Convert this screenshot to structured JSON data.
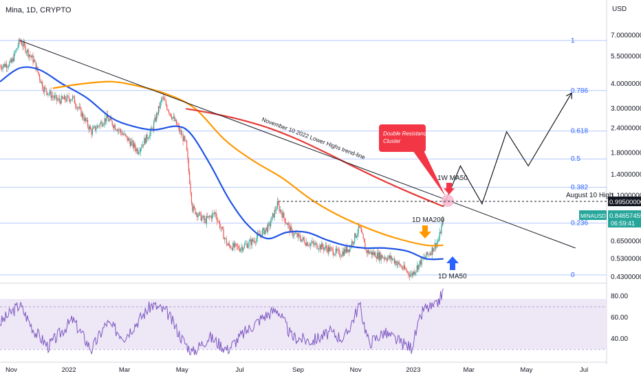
{
  "header": {
    "title": "Mina, 1D, CRYPTO"
  },
  "currency": "USD",
  "colors": {
    "fib": "#2962ff",
    "trendline": "#131722",
    "ma_1w50": "#e53935",
    "ma_1d200": "#ff9800",
    "ma_1d50": "#1e53e5",
    "rsi": "#7e57c2",
    "rsi_band": "#ede7f6",
    "candle_up": "#26a69a",
    "candle_down": "#ef5350",
    "price_tag": "#26a69a",
    "callout": "#f23645",
    "circle": "#f8bbd0"
  },
  "price_axis": {
    "ticks": [
      "7.00000000",
      "5.50000000",
      "4.00000000",
      "3.00000000",
      "2.40000000",
      "1.80000000",
      "1.40000000",
      "1.10000000",
      "0.65000000",
      "0.53000000",
      "0.43000000"
    ],
    "tick_values": [
      7.0,
      5.5,
      4.0,
      3.0,
      2.4,
      1.8,
      1.4,
      1.1,
      0.65,
      0.53,
      0.43
    ],
    "scale": "log"
  },
  "rsi_axis": {
    "ticks": [
      "80.00",
      "60.00",
      "40.00"
    ],
    "tick_values": [
      80,
      60,
      40
    ]
  },
  "time_axis": {
    "labels": [
      "Nov",
      "2022",
      "Mar",
      "May",
      "Jul",
      "Sep",
      "Nov",
      "2023",
      "Mar",
      "May",
      "Jul"
    ]
  },
  "fib_levels": [
    {
      "label": "1",
      "price": 6.6
    },
    {
      "label": "0.786",
      "price": 3.7
    },
    {
      "label": "0.618",
      "price": 2.32
    },
    {
      "label": "0.5",
      "price": 1.68
    },
    {
      "label": "0.382",
      "price": 1.21
    },
    {
      "label": "0.236",
      "price": 0.8
    },
    {
      "label": "0",
      "price": 0.44
    }
  ],
  "annotations": {
    "trendline_label": "November 10 2022 Lower Highs trend-line",
    "callout_text": "Double Resistance Cluster",
    "ma_1w50_label": "1W MA50",
    "ma_1d200_label": "1D MA200",
    "ma_1d50_label": "1D MA50",
    "aug10_label": "August 10 High"
  },
  "price_tags": {
    "aug10_price": "0.99500000",
    "last_price": "0.84657455",
    "symbol": "MINAUSD",
    "countdown": "06:59:41"
  },
  "chart_data": {
    "type": "line",
    "title": "Mina, 1D, CRYPTO",
    "y_scale": "log",
    "ylim": [
      0.4,
      8.3
    ],
    "x_range": [
      "2021-10-20",
      "2023-07-25"
    ],
    "series": [
      {
        "name": "MINAUSD",
        "points": [
          [
            "2021-10-20",
            4.9
          ],
          [
            "2021-11-01",
            5.1
          ],
          [
            "2021-11-10",
            6.6
          ],
          [
            "2021-11-25",
            5.2
          ],
          [
            "2021-12-05",
            3.8
          ],
          [
            "2021-12-20",
            3.3
          ],
          [
            "2022-01-05",
            3.4
          ],
          [
            "2022-01-25",
            2.3
          ],
          [
            "2022-02-10",
            2.7
          ],
          [
            "2022-02-25",
            2.3
          ],
          [
            "2022-03-15",
            1.85
          ],
          [
            "2022-03-30",
            2.35
          ],
          [
            "2022-04-10",
            3.4
          ],
          [
            "2022-04-25",
            2.5
          ],
          [
            "2022-05-05",
            2.0
          ],
          [
            "2022-05-12",
            0.95
          ],
          [
            "2022-05-25",
            0.82
          ],
          [
            "2022-06-05",
            0.9
          ],
          [
            "2022-06-18",
            0.62
          ],
          [
            "2022-07-01",
            0.6
          ],
          [
            "2022-07-15",
            0.65
          ],
          [
            "2022-08-01",
            0.77
          ],
          [
            "2022-08-10",
            0.99
          ],
          [
            "2022-08-25",
            0.72
          ],
          [
            "2022-09-10",
            0.64
          ],
          [
            "2022-10-01",
            0.6
          ],
          [
            "2022-10-15",
            0.56
          ],
          [
            "2022-10-25",
            0.6
          ],
          [
            "2022-11-05",
            0.76
          ],
          [
            "2022-11-12",
            0.58
          ],
          [
            "2022-11-25",
            0.55
          ],
          [
            "2022-12-10",
            0.53
          ],
          [
            "2022-12-20",
            0.48
          ],
          [
            "2022-12-30",
            0.44
          ],
          [
            "2023-01-10",
            0.52
          ],
          [
            "2023-01-20",
            0.58
          ],
          [
            "2023-01-28",
            0.66
          ],
          [
            "2023-02-02",
            0.85
          ]
        ]
      },
      {
        "name": "1D MA50",
        "points": [
          [
            "2021-10-20",
            4.1
          ],
          [
            "2021-11-10",
            4.8
          ],
          [
            "2021-12-01",
            4.7
          ],
          [
            "2021-12-25",
            4.0
          ],
          [
            "2022-01-20",
            3.4
          ],
          [
            "2022-02-15",
            2.7
          ],
          [
            "2022-03-10",
            2.45
          ],
          [
            "2022-04-01",
            2.35
          ],
          [
            "2022-04-25",
            2.45
          ],
          [
            "2022-05-10",
            2.25
          ],
          [
            "2022-05-30",
            1.6
          ],
          [
            "2022-06-20",
            1.05
          ],
          [
            "2022-07-10",
            0.78
          ],
          [
            "2022-07-30",
            0.67
          ],
          [
            "2022-08-20",
            0.72
          ],
          [
            "2022-09-10",
            0.72
          ],
          [
            "2022-10-01",
            0.66
          ],
          [
            "2022-10-20",
            0.62
          ],
          [
            "2022-11-10",
            0.6
          ],
          [
            "2022-12-01",
            0.6
          ],
          [
            "2022-12-25",
            0.58
          ],
          [
            "2023-01-15",
            0.53
          ],
          [
            "2023-02-02",
            0.53
          ]
        ]
      },
      {
        "name": "1D MA200",
        "points": [
          [
            "2021-12-15",
            3.8
          ],
          [
            "2022-01-15",
            4.0
          ],
          [
            "2022-02-15",
            4.1
          ],
          [
            "2022-03-15",
            3.9
          ],
          [
            "2022-04-15",
            3.55
          ],
          [
            "2022-05-15",
            3.0
          ],
          [
            "2022-06-15",
            2.1
          ],
          [
            "2022-07-15",
            1.65
          ],
          [
            "2022-08-15",
            1.35
          ],
          [
            "2022-09-15",
            1.05
          ],
          [
            "2022-10-15",
            0.87
          ],
          [
            "2022-11-15",
            0.75
          ],
          [
            "2022-12-15",
            0.67
          ],
          [
            "2023-01-15",
            0.62
          ],
          [
            "2023-02-02",
            0.62
          ]
        ]
      },
      {
        "name": "1W MA50",
        "points": [
          [
            "2022-05-05",
            3.0
          ],
          [
            "2022-06-01",
            2.85
          ],
          [
            "2022-07-01",
            2.65
          ],
          [
            "2022-08-01",
            2.4
          ],
          [
            "2022-09-01",
            2.1
          ],
          [
            "2022-10-01",
            1.8
          ],
          [
            "2022-11-01",
            1.52
          ],
          [
            "2022-12-01",
            1.3
          ],
          [
            "2023-01-01",
            1.12
          ],
          [
            "2023-02-02",
            0.97
          ]
        ]
      },
      {
        "name": "Projection",
        "points": [
          [
            "2023-02-02",
            0.97
          ],
          [
            "2023-02-20",
            1.55
          ],
          [
            "2023-03-15",
            1.0
          ],
          [
            "2023-04-10",
            2.3
          ],
          [
            "2023-05-03",
            1.55
          ],
          [
            "2023-06-18",
            3.6
          ]
        ]
      },
      {
        "name": "Trend-line",
        "points": [
          [
            "2021-11-10",
            6.6
          ],
          [
            "2023-06-22",
            0.6
          ]
        ]
      }
    ],
    "rsi": {
      "ylim": [
        24,
        87
      ],
      "band": [
        30,
        70
      ],
      "points": [
        [
          "2021-10-20",
          55
        ],
        [
          "2021-11-10",
          72
        ],
        [
          "2021-11-25",
          48
        ],
        [
          "2021-12-10",
          33
        ],
        [
          "2022-01-05",
          58
        ],
        [
          "2022-01-25",
          30
        ],
        [
          "2022-02-10",
          55
        ],
        [
          "2022-03-01",
          42
        ],
        [
          "2022-03-30",
          72
        ],
        [
          "2022-04-15",
          65
        ],
        [
          "2022-05-01",
          40
        ],
        [
          "2022-05-12",
          27
        ],
        [
          "2022-05-30",
          42
        ],
        [
          "2022-06-18",
          30
        ],
        [
          "2022-07-05",
          45
        ],
        [
          "2022-07-25",
          60
        ],
        [
          "2022-08-10",
          68
        ],
        [
          "2022-08-25",
          42
        ],
        [
          "2022-09-15",
          38
        ],
        [
          "2022-10-05",
          46
        ],
        [
          "2022-10-20",
          40
        ],
        [
          "2022-11-05",
          72
        ],
        [
          "2022-11-15",
          36
        ],
        [
          "2022-12-01",
          46
        ],
        [
          "2022-12-20",
          36
        ],
        [
          "2022-12-30",
          32
        ],
        [
          "2023-01-12",
          68
        ],
        [
          "2023-01-25",
          70
        ],
        [
          "2023-02-02",
          85
        ]
      ]
    }
  }
}
